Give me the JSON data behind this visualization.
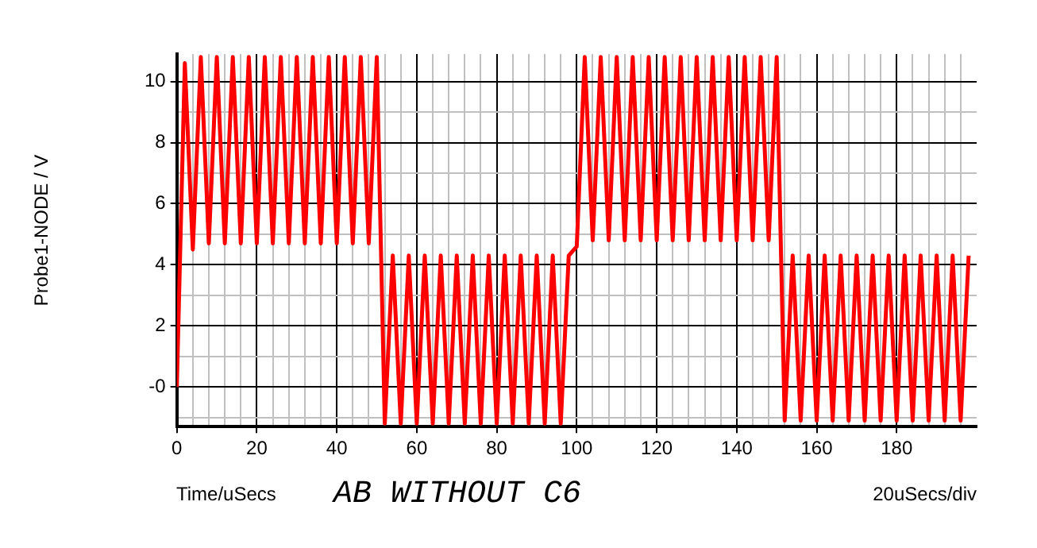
{
  "chart_data": {
    "type": "line",
    "title": "AB WITHOUT C6",
    "xlabel": "Time/uSecs",
    "ylabel": "Probe1-NODE / V",
    "annotations": [
      "20uSecs/div"
    ],
    "x": [
      0,
      2,
      4,
      6,
      8,
      10,
      12,
      14,
      16,
      18,
      20,
      22,
      24,
      26,
      28,
      30,
      32,
      34,
      36,
      38,
      40,
      42,
      44,
      46,
      48,
      50,
      52,
      54,
      56,
      58,
      60,
      62,
      64,
      66,
      68,
      70,
      72,
      74,
      76,
      78,
      80,
      82,
      84,
      86,
      88,
      90,
      92,
      94,
      96,
      98,
      100,
      102,
      104,
      106,
      108,
      110,
      112,
      114,
      116,
      118,
      120,
      122,
      124,
      126,
      128,
      130,
      132,
      134,
      136,
      138,
      140,
      142,
      144,
      146,
      148,
      150,
      152,
      154,
      156,
      158,
      160,
      162,
      164,
      166,
      168,
      170,
      172,
      174,
      176,
      178,
      180,
      182,
      184,
      186,
      188,
      190,
      192,
      194,
      196,
      198
    ],
    "series": [
      {
        "color": "#ff0000",
        "values": [
          0,
          10.6,
          4.5,
          10.8,
          4.7,
          10.8,
          4.7,
          10.8,
          4.7,
          10.8,
          4.7,
          10.8,
          4.7,
          10.8,
          4.7,
          10.8,
          4.7,
          10.8,
          4.7,
          10.8,
          4.7,
          10.8,
          4.7,
          10.8,
          4.7,
          10.8,
          -1.2,
          4.3,
          -1.2,
          4.3,
          -1.2,
          4.3,
          -1.2,
          4.3,
          -1.2,
          4.3,
          -1.2,
          4.3,
          -1.2,
          4.3,
          -1.2,
          4.3,
          -1.2,
          4.3,
          -1.2,
          4.3,
          -1.2,
          4.3,
          -1.2,
          4.3,
          4.6,
          10.8,
          4.8,
          10.8,
          4.8,
          10.8,
          4.8,
          10.8,
          4.8,
          10.8,
          4.8,
          10.8,
          4.8,
          10.8,
          4.8,
          10.8,
          4.8,
          10.8,
          4.8,
          10.8,
          4.8,
          10.8,
          4.8,
          10.8,
          4.8,
          10.8,
          -1.1,
          4.3,
          -1.1,
          4.3,
          -1.1,
          4.3,
          -1.1,
          4.3,
          -1.1,
          4.3,
          -1.1,
          4.3,
          -1.1,
          4.3,
          -1.1,
          4.3,
          -1.1,
          4.3,
          -1.1,
          4.3,
          -1.1,
          4.3,
          -1.1,
          4.3
        ]
      }
    ],
    "xlim": [
      0,
      200
    ],
    "xticks": [
      0,
      {
        "value": 4,
        "label": null
      },
      {
        "value": 8,
        "label": null
      },
      {
        "value": 12,
        "label": null
      },
      {
        "value": 16,
        "label": null
      },
      20,
      {
        "value": 24,
        "label": null
      },
      {
        "value": 28,
        "label": null
      },
      {
        "value": 32,
        "label": null
      },
      {
        "value": 36,
        "label": null
      },
      40,
      {
        "value": 44,
        "label": null
      },
      {
        "value": 48,
        "label": null
      },
      {
        "value": 52,
        "label": null
      },
      {
        "value": 56,
        "label": null
      },
      60,
      {
        "value": 64,
        "label": null
      },
      {
        "value": 68,
        "label": null
      },
      {
        "value": 72,
        "label": null
      },
      {
        "value": 76,
        "label": null
      },
      80,
      {
        "value": 84,
        "label": null
      },
      {
        "value": 88,
        "label": null
      },
      {
        "value": 92,
        "label": null
      },
      {
        "value": 96,
        "label": null
      },
      100,
      {
        "value": 104,
        "label": null
      },
      {
        "value": 108,
        "label": null
      },
      {
        "value": 112,
        "label": null
      },
      {
        "value": 116,
        "label": null
      },
      120,
      {
        "value": 124,
        "label": null
      },
      {
        "value": 128,
        "label": null
      },
      {
        "value": 132,
        "label": null
      },
      {
        "value": 136,
        "label": null
      },
      140,
      {
        "value": 144,
        "label": null
      },
      {
        "value": 148,
        "label": null
      },
      {
        "value": 152,
        "label": null
      },
      {
        "value": 156,
        "label": null
      },
      160,
      {
        "value": 164,
        "label": null
      },
      {
        "value": 168,
        "label": null
      },
      {
        "value": 172,
        "label": null
      },
      {
        "value": 176,
        "label": null
      },
      180,
      {
        "value": 184,
        "label": null
      },
      {
        "value": 188,
        "label": null
      },
      {
        "value": 192,
        "label": null
      },
      {
        "value": 196,
        "label": null
      }
    ],
    "ylim": [
      -1.3,
      10.9
    ],
    "yticks": [
      {
        "value": -1,
        "label": null
      },
      {
        "value": 0,
        "label": "-0"
      },
      {
        "value": 1,
        "label": null
      },
      2,
      {
        "value": 3,
        "label": null
      },
      4,
      {
        "value": 5,
        "label": null
      },
      6,
      {
        "value": 7,
        "label": null
      },
      8,
      {
        "value": 9,
        "label": null
      },
      10
    ],
    "grid": true,
    "legend": false,
    "marker": "none",
    "line_style": "solid"
  }
}
